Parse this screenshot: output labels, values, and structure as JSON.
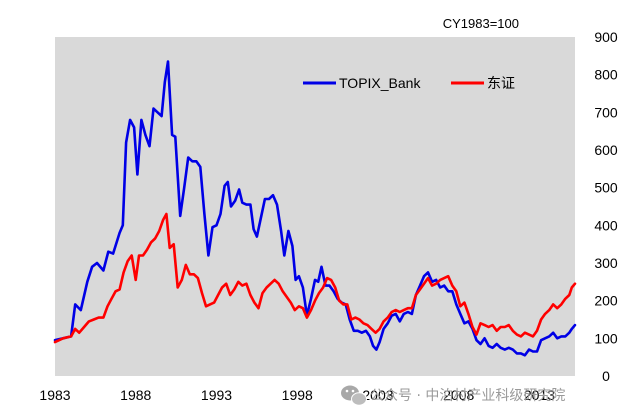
{
  "chart_data": {
    "type": "line",
    "title": "",
    "annotation": "CY1983=100",
    "xlabel": "",
    "ylabel": "",
    "x_ticks": [
      "1983",
      "1988",
      "1993",
      "1998",
      "2003",
      "2008",
      "2013"
    ],
    "xlim": [
      1983,
      2015.2
    ],
    "ylim": [
      0,
      900
    ],
    "y_ticks": [
      0,
      100,
      200,
      300,
      400,
      500,
      600,
      700,
      800,
      900
    ],
    "y_axis_side": "right",
    "grid": false,
    "background": "#d9d9d9",
    "legend_position": "top-right",
    "series": [
      {
        "name": "TOPIX_Bank",
        "color": "#0000e6",
        "points": [
          [
            1983.0,
            95
          ],
          [
            1983.5,
            100
          ],
          [
            1984.0,
            105
          ],
          [
            1984.25,
            190
          ],
          [
            1984.6,
            175
          ],
          [
            1985.0,
            250
          ],
          [
            1985.3,
            290
          ],
          [
            1985.6,
            300
          ],
          [
            1986.0,
            280
          ],
          [
            1986.3,
            330
          ],
          [
            1986.6,
            325
          ],
          [
            1987.0,
            380
          ],
          [
            1987.2,
            400
          ],
          [
            1987.4,
            620
          ],
          [
            1987.65,
            680
          ],
          [
            1987.9,
            660
          ],
          [
            1988.1,
            535
          ],
          [
            1988.35,
            680
          ],
          [
            1988.6,
            640
          ],
          [
            1988.85,
            610
          ],
          [
            1989.1,
            710
          ],
          [
            1989.35,
            700
          ],
          [
            1989.6,
            690
          ],
          [
            1989.8,
            780
          ],
          [
            1990.0,
            835
          ],
          [
            1990.25,
            640
          ],
          [
            1990.45,
            635
          ],
          [
            1990.75,
            425
          ],
          [
            1991.0,
            500
          ],
          [
            1991.25,
            580
          ],
          [
            1991.5,
            570
          ],
          [
            1991.75,
            570
          ],
          [
            1992.0,
            555
          ],
          [
            1992.25,
            430
          ],
          [
            1992.5,
            320
          ],
          [
            1992.75,
            395
          ],
          [
            1993.0,
            400
          ],
          [
            1993.25,
            430
          ],
          [
            1993.5,
            505
          ],
          [
            1993.7,
            515
          ],
          [
            1993.9,
            450
          ],
          [
            1994.15,
            465
          ],
          [
            1994.4,
            495
          ],
          [
            1994.6,
            460
          ],
          [
            1994.85,
            455
          ],
          [
            1995.1,
            455
          ],
          [
            1995.3,
            390
          ],
          [
            1995.5,
            370
          ],
          [
            1995.75,
            420
          ],
          [
            1996.0,
            470
          ],
          [
            1996.25,
            470
          ],
          [
            1996.5,
            480
          ],
          [
            1996.75,
            455
          ],
          [
            1997.0,
            385
          ],
          [
            1997.2,
            320
          ],
          [
            1997.45,
            385
          ],
          [
            1997.7,
            345
          ],
          [
            1997.9,
            255
          ],
          [
            1998.1,
            265
          ],
          [
            1998.35,
            235
          ],
          [
            1998.6,
            160
          ],
          [
            1998.85,
            205
          ],
          [
            1999.1,
            255
          ],
          [
            1999.3,
            250
          ],
          [
            1999.5,
            290
          ],
          [
            1999.75,
            240
          ],
          [
            2000.0,
            240
          ],
          [
            2000.25,
            225
          ],
          [
            2000.5,
            205
          ],
          [
            2000.75,
            195
          ],
          [
            2001.0,
            190
          ],
          [
            2001.25,
            150
          ],
          [
            2001.5,
            120
          ],
          [
            2001.75,
            120
          ],
          [
            2002.0,
            115
          ],
          [
            2002.25,
            120
          ],
          [
            2002.5,
            105
          ],
          [
            2002.7,
            80
          ],
          [
            2002.9,
            70
          ],
          [
            2003.1,
            90
          ],
          [
            2003.35,
            125
          ],
          [
            2003.6,
            140
          ],
          [
            2003.85,
            160
          ],
          [
            2004.1,
            165
          ],
          [
            2004.35,
            145
          ],
          [
            2004.6,
            165
          ],
          [
            2004.85,
            170
          ],
          [
            2005.1,
            165
          ],
          [
            2005.35,
            215
          ],
          [
            2005.6,
            240
          ],
          [
            2005.85,
            265
          ],
          [
            2006.1,
            275
          ],
          [
            2006.35,
            250
          ],
          [
            2006.6,
            255
          ],
          [
            2006.85,
            235
          ],
          [
            2007.1,
            240
          ],
          [
            2007.35,
            225
          ],
          [
            2007.6,
            225
          ],
          [
            2007.85,
            190
          ],
          [
            2008.1,
            165
          ],
          [
            2008.35,
            140
          ],
          [
            2008.6,
            145
          ],
          [
            2008.85,
            125
          ],
          [
            2009.1,
            95
          ],
          [
            2009.35,
            85
          ],
          [
            2009.6,
            100
          ],
          [
            2009.85,
            80
          ],
          [
            2010.1,
            75
          ],
          [
            2010.35,
            85
          ],
          [
            2010.6,
            75
          ],
          [
            2010.85,
            70
          ],
          [
            2011.1,
            75
          ],
          [
            2011.35,
            70
          ],
          [
            2011.6,
            60
          ],
          [
            2011.85,
            60
          ],
          [
            2012.1,
            55
          ],
          [
            2012.35,
            70
          ],
          [
            2012.6,
            65
          ],
          [
            2012.85,
            65
          ],
          [
            2013.1,
            95
          ],
          [
            2013.35,
            100
          ],
          [
            2013.6,
            105
          ],
          [
            2013.85,
            115
          ],
          [
            2014.1,
            100
          ],
          [
            2014.35,
            105
          ],
          [
            2014.6,
            105
          ],
          [
            2014.85,
            115
          ],
          [
            2015.0,
            125
          ],
          [
            2015.2,
            135
          ]
        ]
      },
      {
        "name": "东证",
        "color": "#ff0000",
        "points": [
          [
            1983.0,
            90
          ],
          [
            1983.5,
            100
          ],
          [
            1984.0,
            105
          ],
          [
            1984.25,
            125
          ],
          [
            1984.5,
            115
          ],
          [
            1984.8,
            130
          ],
          [
            1985.1,
            145
          ],
          [
            1985.4,
            150
          ],
          [
            1985.7,
            155
          ],
          [
            1986.0,
            155
          ],
          [
            1986.25,
            185
          ],
          [
            1986.5,
            205
          ],
          [
            1986.75,
            225
          ],
          [
            1987.0,
            230
          ],
          [
            1987.25,
            275
          ],
          [
            1987.5,
            305
          ],
          [
            1987.75,
            320
          ],
          [
            1988.0,
            255
          ],
          [
            1988.2,
            320
          ],
          [
            1988.45,
            320
          ],
          [
            1988.7,
            335
          ],
          [
            1988.95,
            355
          ],
          [
            1989.2,
            365
          ],
          [
            1989.45,
            385
          ],
          [
            1989.7,
            415
          ],
          [
            1989.9,
            430
          ],
          [
            1990.1,
            340
          ],
          [
            1990.35,
            350
          ],
          [
            1990.6,
            235
          ],
          [
            1990.85,
            255
          ],
          [
            1991.1,
            295
          ],
          [
            1991.35,
            270
          ],
          [
            1991.6,
            270
          ],
          [
            1991.85,
            260
          ],
          [
            1992.1,
            220
          ],
          [
            1992.35,
            185
          ],
          [
            1992.6,
            190
          ],
          [
            1992.85,
            195
          ],
          [
            1993.1,
            215
          ],
          [
            1993.35,
            235
          ],
          [
            1993.6,
            245
          ],
          [
            1993.85,
            215
          ],
          [
            1994.1,
            230
          ],
          [
            1994.35,
            250
          ],
          [
            1994.6,
            240
          ],
          [
            1994.85,
            245
          ],
          [
            1995.1,
            215
          ],
          [
            1995.35,
            195
          ],
          [
            1995.6,
            180
          ],
          [
            1995.85,
            220
          ],
          [
            1996.1,
            235
          ],
          [
            1996.35,
            245
          ],
          [
            1996.6,
            255
          ],
          [
            1996.85,
            245
          ],
          [
            1997.1,
            225
          ],
          [
            1997.35,
            210
          ],
          [
            1997.6,
            195
          ],
          [
            1997.85,
            175
          ],
          [
            1998.1,
            185
          ],
          [
            1998.35,
            180
          ],
          [
            1998.6,
            155
          ],
          [
            1998.85,
            175
          ],
          [
            1999.1,
            200
          ],
          [
            1999.35,
            220
          ],
          [
            1999.6,
            235
          ],
          [
            1999.85,
            260
          ],
          [
            2000.1,
            255
          ],
          [
            2000.35,
            235
          ],
          [
            2000.6,
            200
          ],
          [
            2000.85,
            190
          ],
          [
            2001.1,
            190
          ],
          [
            2001.35,
            150
          ],
          [
            2001.6,
            155
          ],
          [
            2001.85,
            150
          ],
          [
            2002.1,
            140
          ],
          [
            2002.35,
            135
          ],
          [
            2002.6,
            125
          ],
          [
            2002.85,
            115
          ],
          [
            2003.1,
            125
          ],
          [
            2003.35,
            145
          ],
          [
            2003.6,
            155
          ],
          [
            2003.85,
            170
          ],
          [
            2004.1,
            175
          ],
          [
            2004.35,
            170
          ],
          [
            2004.6,
            175
          ],
          [
            2004.85,
            180
          ],
          [
            2005.1,
            180
          ],
          [
            2005.35,
            215
          ],
          [
            2005.6,
            230
          ],
          [
            2005.85,
            245
          ],
          [
            2006.1,
            260
          ],
          [
            2006.35,
            240
          ],
          [
            2006.6,
            245
          ],
          [
            2006.85,
            255
          ],
          [
            2007.1,
            260
          ],
          [
            2007.35,
            265
          ],
          [
            2007.6,
            240
          ],
          [
            2007.85,
            225
          ],
          [
            2008.1,
            185
          ],
          [
            2008.35,
            195
          ],
          [
            2008.6,
            165
          ],
          [
            2008.85,
            130
          ],
          [
            2009.1,
            110
          ],
          [
            2009.35,
            140
          ],
          [
            2009.6,
            135
          ],
          [
            2009.85,
            130
          ],
          [
            2010.1,
            135
          ],
          [
            2010.35,
            120
          ],
          [
            2010.6,
            130
          ],
          [
            2010.85,
            130
          ],
          [
            2011.1,
            135
          ],
          [
            2011.35,
            120
          ],
          [
            2011.6,
            110
          ],
          [
            2011.85,
            105
          ],
          [
            2012.1,
            115
          ],
          [
            2012.35,
            110
          ],
          [
            2012.6,
            105
          ],
          [
            2012.85,
            120
          ],
          [
            2013.1,
            150
          ],
          [
            2013.35,
            165
          ],
          [
            2013.6,
            175
          ],
          [
            2013.85,
            190
          ],
          [
            2014.1,
            180
          ],
          [
            2014.35,
            190
          ],
          [
            2014.6,
            205
          ],
          [
            2014.85,
            215
          ],
          [
            2015.0,
            235
          ],
          [
            2015.2,
            245
          ]
        ]
      }
    ]
  },
  "watermark": "公众号 · 中泊村产业科级研究院"
}
